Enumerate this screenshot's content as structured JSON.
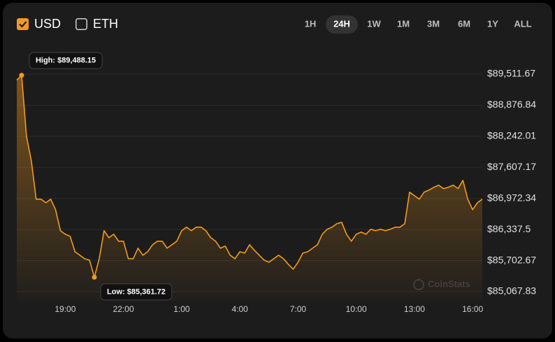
{
  "controls": {
    "currencies": [
      {
        "label": "USD",
        "checked": true
      },
      {
        "label": "ETH",
        "checked": false
      }
    ],
    "ranges": [
      "1H",
      "24H",
      "1W",
      "1M",
      "3M",
      "6M",
      "1Y",
      "ALL"
    ],
    "selected_range": "24H"
  },
  "chart_data": {
    "type": "line",
    "watermark": "CoinStats",
    "x": [
      null,
      null,
      null,
      null,
      null,
      null,
      null,
      null,
      null,
      null,
      "19:00",
      null,
      null,
      null,
      null,
      null,
      null,
      null,
      null,
      null,
      null,
      null,
      "22:00",
      null,
      null,
      null,
      null,
      null,
      null,
      null,
      null,
      null,
      null,
      null,
      "1:00",
      null,
      null,
      null,
      null,
      null,
      null,
      null,
      null,
      null,
      null,
      null,
      "4:00",
      null,
      null,
      null,
      null,
      null,
      null,
      null,
      null,
      null,
      null,
      null,
      "7:00",
      null,
      null,
      null,
      null,
      null,
      null,
      null,
      null,
      null,
      null,
      null,
      "10:00",
      null,
      null,
      null,
      null,
      null,
      null,
      null,
      null,
      null,
      null,
      null,
      "13:00",
      null,
      null,
      null,
      null,
      null,
      null,
      null,
      null,
      null,
      null,
      null,
      "16:00",
      null,
      null
    ],
    "series": [
      {
        "name": "USD",
        "color": "#f39a1e",
        "values": [
          89390,
          89488.15,
          88245,
          87744,
          86957,
          86957,
          86885,
          86957,
          86742,
          86313,
          86241,
          86199,
          85884,
          85812,
          85740,
          85712,
          85361.72,
          85740,
          86313,
          86170,
          86241,
          86098,
          86098,
          85740,
          85740,
          85955,
          85812,
          85884,
          86026,
          86098,
          86098,
          85955,
          86026,
          86098,
          86313,
          86385,
          86313,
          86385,
          86385,
          86313,
          86170,
          86098,
          85955,
          85998,
          85812,
          85740,
          85884,
          85855,
          86026,
          85912,
          85812,
          85712,
          85669,
          85740,
          85812,
          85740,
          85626,
          85526,
          85669,
          85855,
          85884,
          85955,
          86026,
          86241,
          86342,
          86385,
          86456,
          86485,
          86241,
          86098,
          86241,
          86284,
          86241,
          86342,
          86313,
          86342,
          86313,
          86342,
          86385,
          86385,
          86456,
          87100,
          87029,
          86957,
          87100,
          87143,
          87200,
          87243,
          87172,
          87200,
          87243,
          87172,
          87343,
          86957,
          86742,
          86885,
          86957
        ]
      }
    ],
    "annotations": [
      {
        "text": "High: $89,488.15"
      },
      {
        "text": "Low: $85,361.72"
      }
    ],
    "ylim": [
      84882,
      90098
    ],
    "yticks": [
      {
        "value": 89511.67,
        "label": "$89,511.67"
      },
      {
        "value": 88876.84,
        "label": "$88,876.84"
      },
      {
        "value": 88242.01,
        "label": "$88,242.01"
      },
      {
        "value": 87607.17,
        "label": "$87,607.17"
      },
      {
        "value": 86972.34,
        "label": "$86,972.34"
      },
      {
        "value": 86337.5,
        "label": "$86,337.5"
      },
      {
        "value": 85702.67,
        "label": "$85,702.67"
      },
      {
        "value": 85067.83,
        "label": "$85,067.83"
      }
    ],
    "grid": true
  }
}
